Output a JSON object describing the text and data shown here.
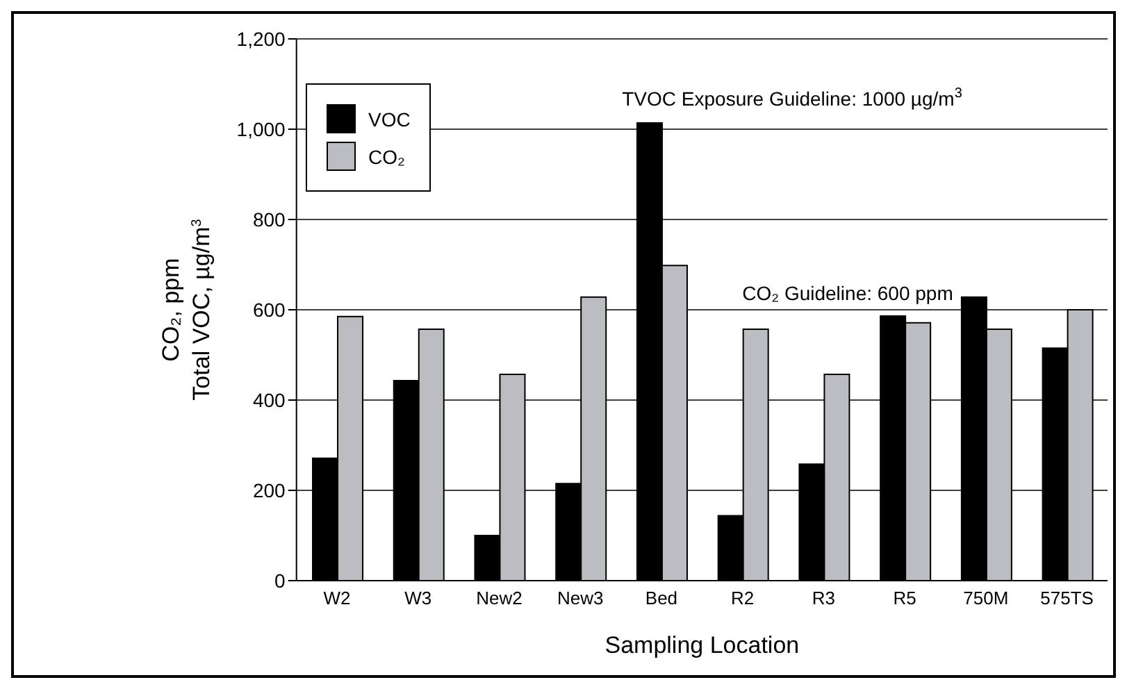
{
  "chart_data": {
    "type": "bar",
    "xlabel": "Sampling Location",
    "ylabel": "CO₂, ppm\nTotal VOC, µg/m$^{3}$",
    "categories": [
      "W2",
      "W3",
      "New2",
      "New3",
      "Bed",
      "R2",
      "R3",
      "R5",
      "750M",
      "575TS"
    ],
    "series": [
      {
        "name": "VOC",
        "color": "#000000",
        "values": [
          271,
          443,
          100,
          215,
          1014,
          144,
          258,
          586,
          628,
          515
        ]
      },
      {
        "name": "CO₂",
        "color": "#bcbdc0",
        "values": [
          585,
          557,
          457,
          628,
          698,
          557,
          457,
          571,
          557,
          600
        ]
      }
    ],
    "ylim": [
      0,
      1200
    ],
    "yticks": [
      {
        "value": 0,
        "label": "0"
      },
      {
        "value": 200,
        "label": "200"
      },
      {
        "value": 400,
        "label": "400"
      },
      {
        "value": 600,
        "label": "600"
      },
      {
        "value": 800,
        "label": "800"
      },
      {
        "value": 1000,
        "label": "1,000"
      },
      {
        "value": 1200,
        "label": "1,200"
      }
    ],
    "grid": "y",
    "legend": "top left",
    "annotations": [
      "TVOC Exposure Guideline: 1000 µg/m$^{3}$",
      "CO₂ Guideline: 600 ppm"
    ]
  }
}
